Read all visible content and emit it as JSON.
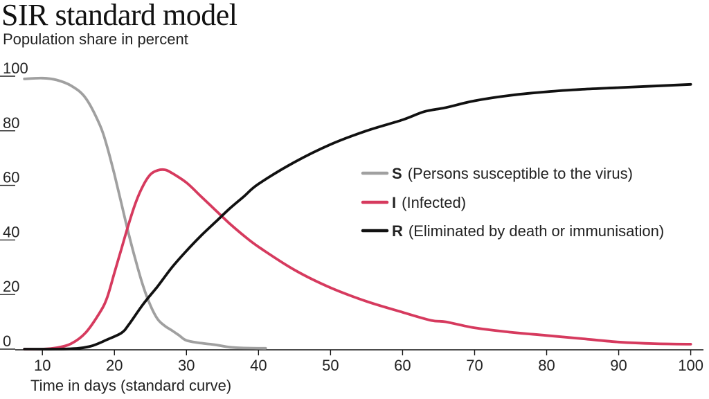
{
  "chart_data": {
    "type": "line",
    "title": "SIR standard model",
    "ylabel": "Population share in percent",
    "xlabel": "Time in days (standard curve)",
    "xlim": [
      7,
      101
    ],
    "ylim": [
      0,
      100
    ],
    "x_ticks": [
      10,
      20,
      30,
      40,
      50,
      60,
      70,
      80,
      90,
      100
    ],
    "y_ticks": [
      0,
      20,
      40,
      60,
      80,
      100
    ],
    "grid": false,
    "legend_position": "right",
    "series": [
      {
        "key": "S",
        "name": "(Persons susceptible to the virus)",
        "color": "#a0a0a0",
        "points": [
          [
            7.5,
            99
          ],
          [
            10,
            99.3
          ],
          [
            12,
            98.6
          ],
          [
            14,
            96.5
          ],
          [
            16,
            92
          ],
          [
            18,
            82
          ],
          [
            19,
            74
          ],
          [
            20,
            64
          ],
          [
            21,
            53
          ],
          [
            22,
            42
          ],
          [
            23,
            32
          ],
          [
            24,
            23
          ],
          [
            25,
            16
          ],
          [
            26,
            11
          ],
          [
            27,
            8.5
          ],
          [
            28,
            6.8
          ],
          [
            29,
            5
          ],
          [
            30,
            3.2
          ],
          [
            32,
            2.2
          ],
          [
            34,
            1.6
          ],
          [
            36,
            0.7
          ],
          [
            38,
            0.4
          ],
          [
            41,
            0.3
          ]
        ]
      },
      {
        "key": "I",
        "name": "(Infected)",
        "color": "#d63a5e",
        "points": [
          [
            7.5,
            0
          ],
          [
            10,
            0
          ],
          [
            12,
            0.5
          ],
          [
            14,
            2
          ],
          [
            16,
            6
          ],
          [
            18,
            13.5
          ],
          [
            19,
            19
          ],
          [
            20,
            28
          ],
          [
            21,
            37
          ],
          [
            22,
            46
          ],
          [
            23,
            54
          ],
          [
            24,
            60
          ],
          [
            25,
            64
          ],
          [
            26,
            65.5
          ],
          [
            27,
            65.7
          ],
          [
            28,
            64.5
          ],
          [
            30,
            61
          ],
          [
            32,
            56
          ],
          [
            34,
            51
          ],
          [
            36,
            46
          ],
          [
            38,
            41.5
          ],
          [
            40,
            37.5
          ],
          [
            45,
            29
          ],
          [
            50,
            22.5
          ],
          [
            55,
            17.5
          ],
          [
            60,
            13.5
          ],
          [
            64,
            10.5
          ],
          [
            66,
            10
          ],
          [
            70,
            7.8
          ],
          [
            75,
            6.2
          ],
          [
            80,
            5
          ],
          [
            85,
            3.8
          ],
          [
            90,
            2.6
          ],
          [
            95,
            2
          ],
          [
            100,
            1.8
          ]
        ]
      },
      {
        "key": "R",
        "name": "(Eliminated by death or immunisation)",
        "color": "#111111",
        "points": [
          [
            7.5,
            0
          ],
          [
            12,
            0
          ],
          [
            15,
            0.3
          ],
          [
            17,
            1.3
          ],
          [
            19,
            3.5
          ],
          [
            21,
            6
          ],
          [
            22,
            9
          ],
          [
            24,
            16.5
          ],
          [
            26,
            23
          ],
          [
            28,
            30
          ],
          [
            30,
            36
          ],
          [
            32,
            41.5
          ],
          [
            34,
            46.5
          ],
          [
            36,
            51.5
          ],
          [
            38,
            56
          ],
          [
            40,
            60.5
          ],
          [
            45,
            68.5
          ],
          [
            50,
            75
          ],
          [
            55,
            80
          ],
          [
            60,
            84
          ],
          [
            63,
            87
          ],
          [
            66,
            88.5
          ],
          [
            70,
            91
          ],
          [
            75,
            93
          ],
          [
            80,
            94.3
          ],
          [
            85,
            95.2
          ],
          [
            90,
            95.8
          ],
          [
            95,
            96.4
          ],
          [
            100,
            97
          ]
        ]
      }
    ]
  }
}
